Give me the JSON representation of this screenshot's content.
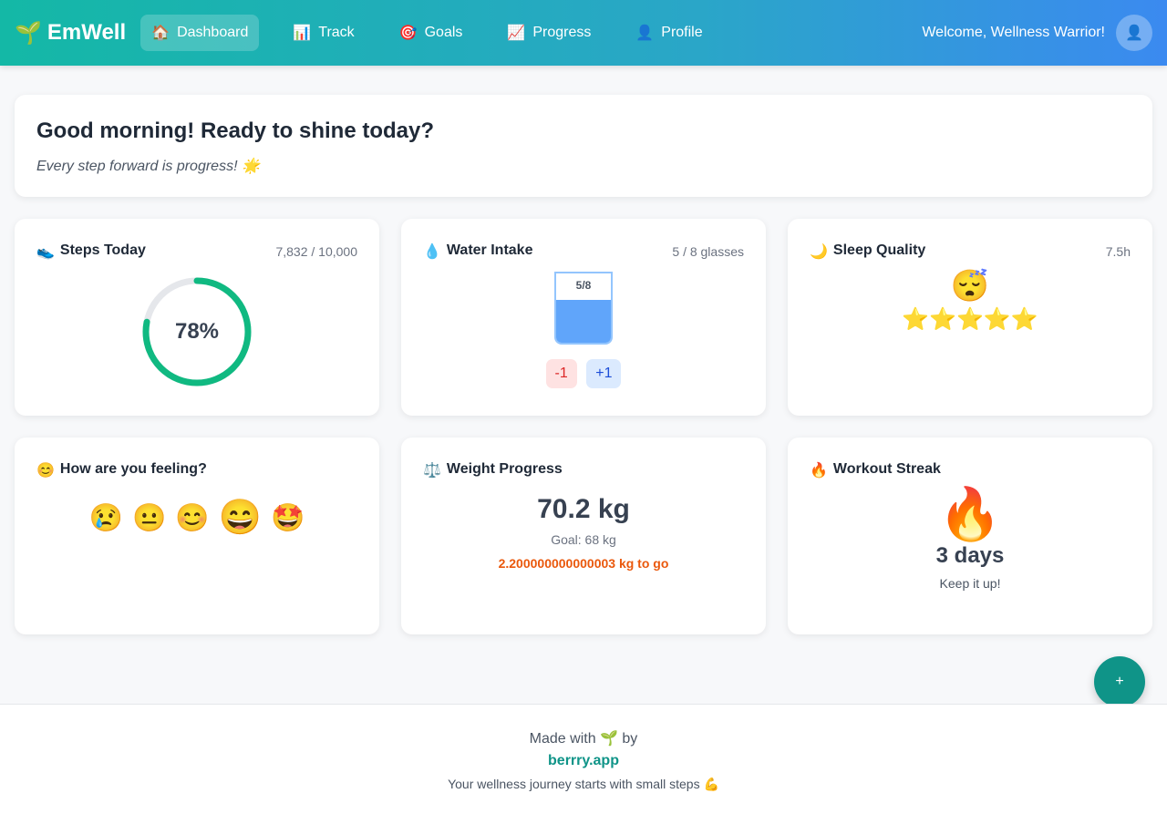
{
  "nav": {
    "logo_icon": "🌱",
    "logo": "EmWell",
    "items": [
      {
        "icon": "🏠",
        "label": "Dashboard"
      },
      {
        "icon": "📊",
        "label": "Track"
      },
      {
        "icon": "🎯",
        "label": "Goals"
      },
      {
        "icon": "📈",
        "label": "Progress"
      },
      {
        "icon": "👤",
        "label": "Profile"
      }
    ],
    "welcome": "Welcome, Wellness Warrior!",
    "avatar": "👤"
  },
  "hero": {
    "title": "Good morning! Ready to shine today?",
    "subtitle": "Every step forward is progress! 🌟"
  },
  "steps": {
    "icon": "👟",
    "title": "Steps Today",
    "meta": "7,832 / 10,000",
    "percent_label": "78%",
    "progress": 0.78
  },
  "water": {
    "icon": "💧",
    "title": "Water Intake",
    "meta": "5 / 8 glasses",
    "glass_label": "5/8",
    "fill": 0.625,
    "minus": "-1",
    "plus": "+1"
  },
  "sleep": {
    "icon": "🌙",
    "title": "Sleep Quality",
    "meta": "7.5h",
    "face": "😴",
    "stars": "⭐⭐⭐⭐⭐",
    "rating": 5
  },
  "mood": {
    "icon": "😊",
    "title": "How are you feeling?",
    "options": [
      "😢",
      "😐",
      "😊",
      "😄",
      "🤩"
    ],
    "selected": 3
  },
  "weight": {
    "icon": "⚖️",
    "title": "Weight Progress",
    "value": "70.2 kg",
    "goal": "Goal: 68 kg",
    "remaining": "2.200000000000003 kg to go"
  },
  "streak": {
    "icon": "🔥",
    "title": "Workout Streak",
    "fire": "🔥",
    "days": "3 days",
    "note": "Keep it up!"
  },
  "fab": "+",
  "footer": {
    "made": "Made with 🌱 by",
    "link": "berrry.app",
    "tagline": "Your wellness journey starts with small steps 💪"
  }
}
